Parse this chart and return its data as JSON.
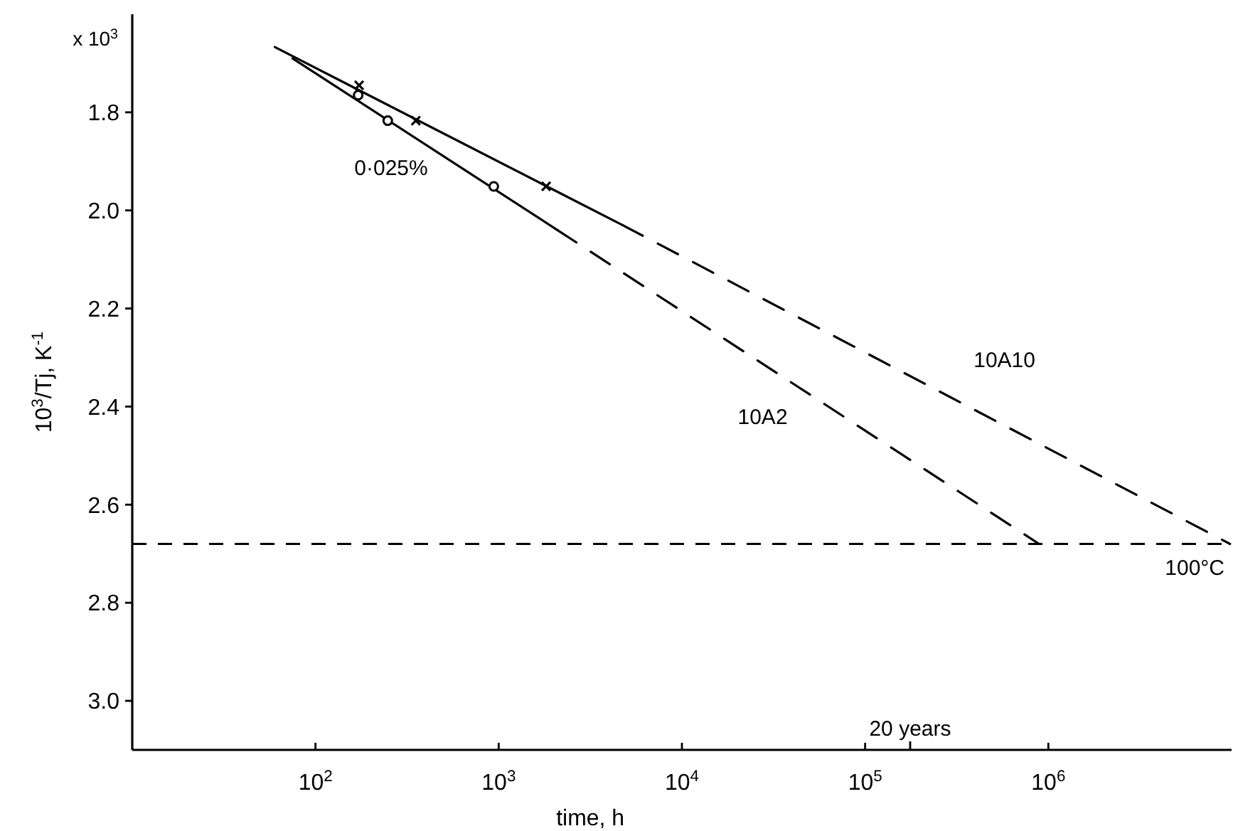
{
  "chart_data": {
    "type": "line",
    "xlabel": "time, h",
    "ylabel": "10$^{3}$/Tj, K$^{-1}$",
    "log": "x",
    "grid": false,
    "xlim": [
      10,
      10000000
    ],
    "ylim": [
      3.1,
      1.6
    ],
    "xticks": [
      {
        "value": 100,
        "label": "10$^{2}$"
      },
      {
        "value": 1000,
        "label": "10$^{3}$"
      },
      {
        "value": 10000,
        "label": "10$^{4}$"
      },
      {
        "value": 100000,
        "label": "10$^{5}$"
      },
      {
        "value": 1000000,
        "label": "10$^{6}$"
      }
    ],
    "yticks": [
      1.8,
      {
        "value": 2,
        "label": "2.0"
      },
      2.2,
      2.4,
      2.6,
      2.8,
      {
        "value": 3,
        "label": "3.0"
      }
    ],
    "series": [
      {
        "color": "#000000",
        "line_style": "solid",
        "marker": "none",
        "x": [
          60,
          4740
        ],
        "values": [
          1.667,
          2.03
        ]
      },
      {
        "name": "10A10",
        "color": "#000000",
        "line_style": "dashed",
        "marker": "none",
        "x": [
          4740,
          9800000
        ],
        "values": [
          2.03,
          2.68
        ]
      },
      {
        "type": "scatter",
        "color": "#000000",
        "marker": "cross",
        "x": [
          173,
          353,
          1815
        ],
        "values": [
          1.745,
          1.817,
          1.951
        ]
      },
      {
        "color": "#000000",
        "line_style": "solid",
        "marker": "none",
        "x": [
          75,
          2090
        ],
        "values": [
          1.69,
          2.04
        ]
      },
      {
        "name": "10A2",
        "color": "#000000",
        "line_style": "dashed",
        "marker": "none",
        "x": [
          2090,
          890000
        ],
        "values": [
          2.04,
          2.68
        ]
      },
      {
        "type": "scatter",
        "color": "#000000",
        "marker": "circle",
        "x": [
          171,
          248,
          940
        ],
        "values": [
          1.765,
          1.817,
          1.951
        ]
      }
    ],
    "ref_lines": [
      {
        "axis": "y",
        "value": 2.68,
        "label": "100°C",
        "line_style": "dashed",
        "color": "#000000"
      }
    ],
    "annotations": [
      "x 10$^{3}$",
      "0·025%",
      "20 years"
    ]
  }
}
